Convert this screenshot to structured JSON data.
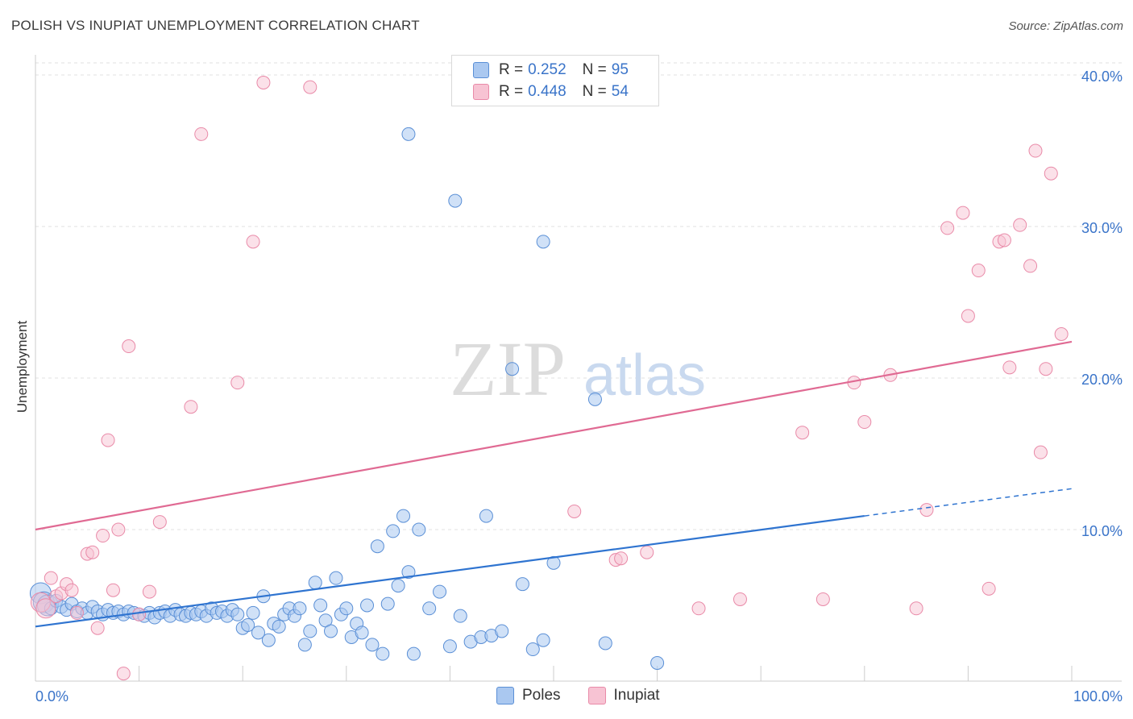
{
  "title": "POLISH VS INUPIAT UNEMPLOYMENT CORRELATION CHART",
  "source": "Source: ZipAtlas.com",
  "watermark": {
    "zip": "ZIP",
    "atlas": "atlas"
  },
  "legend": {
    "poles": {
      "r_label": "R =",
      "r_value": "0.252",
      "n_label": "N =",
      "n_value": "95"
    },
    "inupiat": {
      "r_label": "R =",
      "r_value": "0.448",
      "n_label": "N =",
      "n_value": "54"
    }
  },
  "colors": {
    "poles_fill": "#aac8f0",
    "poles_stroke": "#5a8fd6",
    "poles_line": "#2f74d0",
    "inupiat_fill": "#f7c3d3",
    "inupiat_stroke": "#e98aa8",
    "inupiat_line": "#e06a93",
    "axis_label": "#3a74c9"
  },
  "chart_data": {
    "type": "scatter",
    "title": "POLISH VS INUPIAT UNEMPLOYMENT CORRELATION CHART",
    "xlabel": "",
    "ylabel": "Unemployment",
    "xlim": [
      0,
      100
    ],
    "ylim": [
      0,
      40.8
    ],
    "x_tick_labels": [
      "0.0%",
      "100.0%"
    ],
    "y_ticks": [
      10,
      20,
      30,
      40
    ],
    "y_tick_labels": [
      "10.0%",
      "20.0%",
      "30.0%",
      "40.0%"
    ],
    "grid": "horizontal dashed",
    "legend_position": "top-center",
    "series": [
      {
        "name": "Poles",
        "points": [
          [
            0.5,
            5.8
          ],
          [
            0.8,
            5.2
          ],
          [
            1.2,
            5.0
          ],
          [
            1.5,
            4.8
          ],
          [
            2.0,
            5.3
          ],
          [
            2.5,
            4.9
          ],
          [
            3.0,
            4.7
          ],
          [
            3.5,
            5.1
          ],
          [
            4.0,
            4.6
          ],
          [
            4.5,
            4.8
          ],
          [
            5.0,
            4.5
          ],
          [
            5.5,
            4.9
          ],
          [
            6.0,
            4.6
          ],
          [
            6.5,
            4.4
          ],
          [
            7.0,
            4.7
          ],
          [
            7.5,
            4.5
          ],
          [
            8.0,
            4.6
          ],
          [
            8.5,
            4.4
          ],
          [
            9.0,
            4.6
          ],
          [
            9.5,
            4.5
          ],
          [
            10.0,
            4.4
          ],
          [
            10.5,
            4.3
          ],
          [
            11.0,
            4.5
          ],
          [
            11.5,
            4.2
          ],
          [
            12.0,
            4.5
          ],
          [
            12.5,
            4.6
          ],
          [
            13.0,
            4.3
          ],
          [
            13.5,
            4.7
          ],
          [
            14.0,
            4.4
          ],
          [
            14.5,
            4.3
          ],
          [
            15.0,
            4.5
          ],
          [
            15.5,
            4.4
          ],
          [
            16.0,
            4.6
          ],
          [
            16.5,
            4.3
          ],
          [
            17.0,
            4.8
          ],
          [
            17.5,
            4.5
          ],
          [
            18.0,
            4.6
          ],
          [
            18.5,
            4.3
          ],
          [
            19.0,
            4.7
          ],
          [
            19.5,
            4.4
          ],
          [
            20.0,
            3.5
          ],
          [
            20.5,
            3.7
          ],
          [
            21.0,
            4.5
          ],
          [
            21.5,
            3.2
          ],
          [
            22.0,
            5.6
          ],
          [
            22.5,
            2.7
          ],
          [
            23.0,
            3.8
          ],
          [
            23.5,
            3.6
          ],
          [
            24.0,
            4.4
          ],
          [
            24.5,
            4.8
          ],
          [
            25.0,
            4.3
          ],
          [
            25.5,
            4.8
          ],
          [
            26.0,
            2.4
          ],
          [
            26.5,
            3.3
          ],
          [
            27.0,
            6.5
          ],
          [
            27.5,
            5.0
          ],
          [
            28.0,
            4.0
          ],
          [
            28.5,
            3.3
          ],
          [
            29.0,
            6.8
          ],
          [
            29.5,
            4.4
          ],
          [
            30.0,
            4.8
          ],
          [
            30.5,
            2.9
          ],
          [
            31.0,
            3.8
          ],
          [
            31.5,
            3.2
          ],
          [
            32.0,
            5.0
          ],
          [
            32.5,
            2.4
          ],
          [
            33.0,
            8.9
          ],
          [
            33.5,
            1.8
          ],
          [
            34.0,
            5.1
          ],
          [
            34.5,
            9.9
          ],
          [
            35.0,
            6.3
          ],
          [
            35.5,
            10.9
          ],
          [
            36.0,
            7.2
          ],
          [
            36.5,
            1.8
          ],
          [
            37.0,
            10.0
          ],
          [
            38.0,
            4.8
          ],
          [
            39.0,
            5.9
          ],
          [
            40.0,
            2.3
          ],
          [
            41.0,
            4.3
          ],
          [
            42.0,
            2.6
          ],
          [
            43.0,
            2.9
          ],
          [
            43.5,
            10.9
          ],
          [
            44.0,
            3.0
          ],
          [
            45.0,
            3.3
          ],
          [
            47.0,
            6.4
          ],
          [
            48.0,
            2.1
          ],
          [
            49.0,
            2.7
          ],
          [
            50.0,
            7.8
          ],
          [
            55.0,
            2.5
          ],
          [
            60.0,
            1.2
          ],
          [
            36.0,
            36.1
          ],
          [
            40.5,
            31.7
          ],
          [
            49.0,
            29.0
          ],
          [
            46.0,
            20.6
          ],
          [
            54.0,
            18.6
          ]
        ]
      },
      {
        "name": "Inupiat",
        "points": [
          [
            0.5,
            5.2
          ],
          [
            1.0,
            4.8
          ],
          [
            1.5,
            6.8
          ],
          [
            2.0,
            5.6
          ],
          [
            2.5,
            5.8
          ],
          [
            3.0,
            6.4
          ],
          [
            3.5,
            6.0
          ],
          [
            4.0,
            4.5
          ],
          [
            5.0,
            8.4
          ],
          [
            5.5,
            8.5
          ],
          [
            6.0,
            3.5
          ],
          [
            6.5,
            9.6
          ],
          [
            7.0,
            15.9
          ],
          [
            7.5,
            6.0
          ],
          [
            8.0,
            10.0
          ],
          [
            8.5,
            0.5
          ],
          [
            9.0,
            22.1
          ],
          [
            10.0,
            4.4
          ],
          [
            11.0,
            5.9
          ],
          [
            12.0,
            10.5
          ],
          [
            15.0,
            18.1
          ],
          [
            16.0,
            36.1
          ],
          [
            19.5,
            19.7
          ],
          [
            21.0,
            29.0
          ],
          [
            22.0,
            39.5
          ],
          [
            26.5,
            39.2
          ],
          [
            52.0,
            11.2
          ],
          [
            56.0,
            8.0
          ],
          [
            56.5,
            8.1
          ],
          [
            59.0,
            8.5
          ],
          [
            64.0,
            4.8
          ],
          [
            68.0,
            5.4
          ],
          [
            74.0,
            16.4
          ],
          [
            76.0,
            5.4
          ],
          [
            79.0,
            19.7
          ],
          [
            80.0,
            17.1
          ],
          [
            82.5,
            20.2
          ],
          [
            85.0,
            4.8
          ],
          [
            86.0,
            11.3
          ],
          [
            88.0,
            29.9
          ],
          [
            89.5,
            30.9
          ],
          [
            90.0,
            24.1
          ],
          [
            91.0,
            27.1
          ],
          [
            92.0,
            6.1
          ],
          [
            93.0,
            29.0
          ],
          [
            93.5,
            29.1
          ],
          [
            94.0,
            20.7
          ],
          [
            95.0,
            30.1
          ],
          [
            96.0,
            27.4
          ],
          [
            96.5,
            35.0
          ],
          [
            97.0,
            15.1
          ],
          [
            97.5,
            20.6
          ],
          [
            98.0,
            33.5
          ],
          [
            99.0,
            22.9
          ]
        ]
      }
    ],
    "trend_lines": [
      {
        "name": "Poles",
        "x": [
          0,
          80
        ],
        "y": [
          3.6,
          10.9
        ],
        "dashed_extension_to": [
          100,
          12.7
        ]
      },
      {
        "name": "Inupiat",
        "x": [
          0,
          100
        ],
        "y": [
          10.0,
          22.4
        ]
      }
    ]
  }
}
